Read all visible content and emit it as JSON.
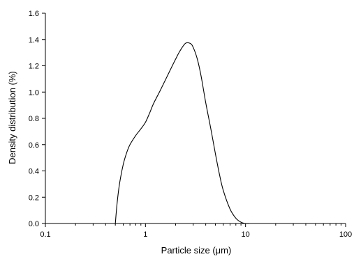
{
  "chart_data": {
    "type": "line",
    "title": "",
    "xlabel": "Particle size (μm)",
    "ylabel": "Density distribution (%)",
    "x_scale": "log",
    "xlim": [
      0.1,
      100
    ],
    "ylim": [
      0,
      1.6
    ],
    "x_ticks": [
      0.1,
      1,
      10,
      100
    ],
    "x_tick_labels": [
      "0.1",
      "1",
      "10",
      "100"
    ],
    "y_ticks": [
      0,
      0.2,
      0.4,
      0.6,
      0.8,
      1.0,
      1.2,
      1.4,
      1.6
    ],
    "y_tick_labels": [
      "0.0",
      "0.2",
      "0.4",
      "0.6",
      "0.8",
      "1.0",
      "1.2",
      "1.4",
      "1.6"
    ],
    "grid": false,
    "legend": "none",
    "series": [
      {
        "color": "#000000",
        "x": [
          0.5,
          0.52,
          0.55,
          0.6,
          0.65,
          0.7,
          0.8,
          0.9,
          1.0,
          1.1,
          1.2,
          1.4,
          1.6,
          1.8,
          2.0,
          2.2,
          2.5,
          2.8,
          3.0,
          3.3,
          3.6,
          4.0,
          4.5,
          5.0,
          5.5,
          6.0,
          7.0,
          8.0,
          9.0,
          10.0,
          11.0
        ],
        "y": [
          0.0,
          0.15,
          0.3,
          0.45,
          0.54,
          0.6,
          0.67,
          0.72,
          0.77,
          0.84,
          0.91,
          1.01,
          1.1,
          1.18,
          1.25,
          1.31,
          1.37,
          1.37,
          1.34,
          1.25,
          1.12,
          0.92,
          0.72,
          0.53,
          0.37,
          0.25,
          0.11,
          0.04,
          0.01,
          0.0,
          0.0
        ]
      }
    ]
  }
}
